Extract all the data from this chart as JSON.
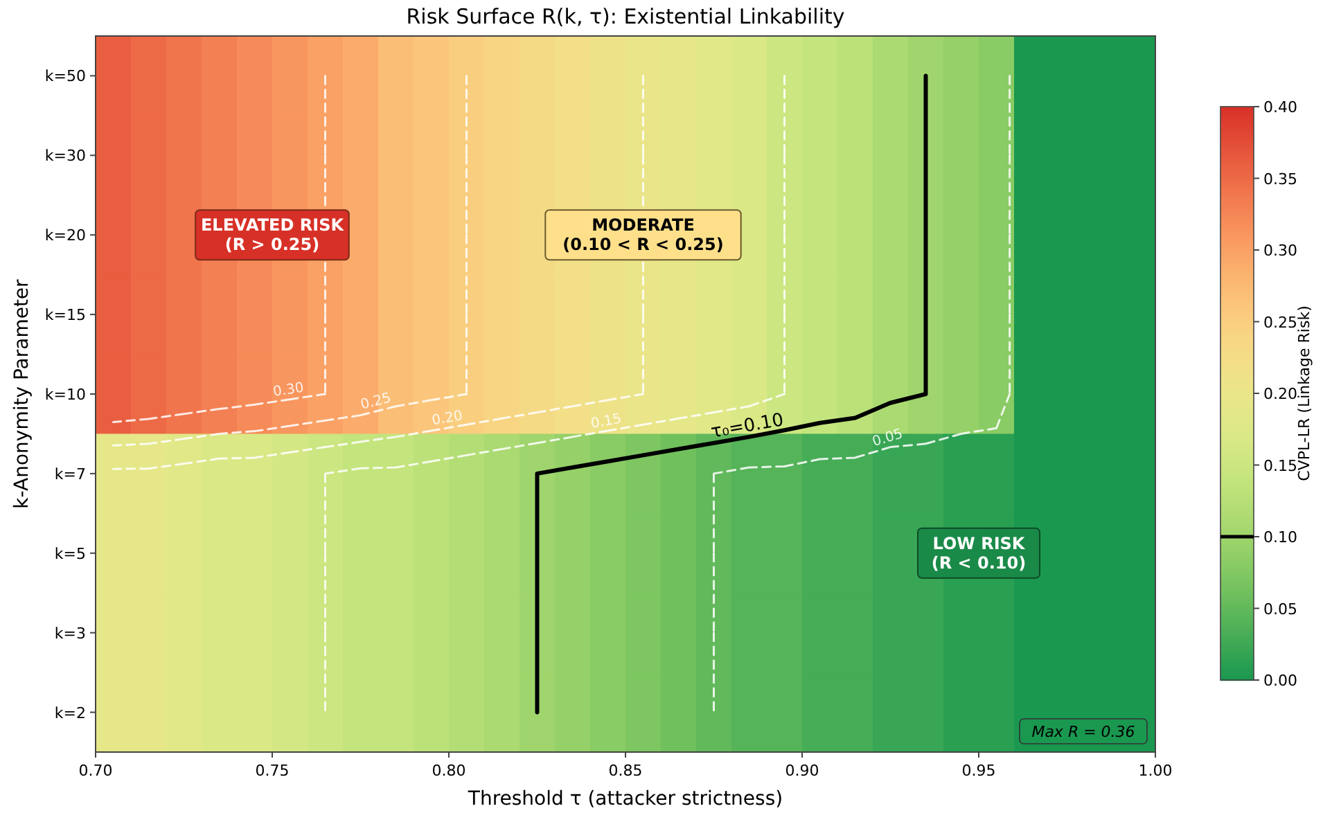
{
  "chart_data": {
    "type": "heatmap",
    "title": "Risk Surface R(k, τ): Existential Linkability",
    "xlabel": "Threshold τ (attacker strictness)",
    "ylabel": "k-Anonymity Parameter",
    "clabel": "CVPL-LR (Linkage Risk)",
    "x": [
      0.705,
      0.715,
      0.725,
      0.735,
      0.745,
      0.755,
      0.765,
      0.775,
      0.785,
      0.795,
      0.805,
      0.815,
      0.825,
      0.835,
      0.845,
      0.855,
      0.865,
      0.875,
      0.885,
      0.895,
      0.905,
      0.915,
      0.925,
      0.935,
      0.945,
      0.955,
      0.965,
      0.975,
      0.985,
      0.995
    ],
    "xlim": [
      0.7,
      1.0
    ],
    "xticks": [
      {
        "value": 0.7,
        "label": "0.70"
      },
      {
        "value": 0.75,
        "label": "0.75"
      },
      {
        "value": 0.8,
        "label": "0.80"
      },
      {
        "value": 0.85,
        "label": "0.85"
      },
      {
        "value": 0.9,
        "label": "0.90"
      },
      {
        "value": 0.95,
        "label": "0.95"
      },
      {
        "value": 1.0,
        "label": "1.00"
      }
    ],
    "y_categories": [
      "k=50",
      "k=30",
      "k=20",
      "k=15",
      "k=10",
      "k=7",
      "k=5",
      "k=3",
      "k=2"
    ],
    "cells": [
      [
        0.36,
        0.35,
        0.34,
        0.33,
        0.32,
        0.31,
        0.3,
        0.29,
        0.27,
        0.26,
        0.25,
        0.24,
        0.23,
        0.22,
        0.21,
        0.2,
        0.19,
        0.18,
        0.17,
        0.15,
        0.14,
        0.13,
        0.11,
        0.1,
        0.09,
        0.08,
        0,
        0,
        0,
        0
      ],
      [
        0.36,
        0.35,
        0.34,
        0.33,
        0.32,
        0.31,
        0.3,
        0.29,
        0.27,
        0.26,
        0.25,
        0.24,
        0.23,
        0.22,
        0.21,
        0.2,
        0.19,
        0.18,
        0.17,
        0.15,
        0.14,
        0.13,
        0.11,
        0.1,
        0.09,
        0.08,
        0,
        0,
        0,
        0
      ],
      [
        0.36,
        0.35,
        0.34,
        0.33,
        0.32,
        0.31,
        0.3,
        0.29,
        0.27,
        0.26,
        0.25,
        0.24,
        0.23,
        0.22,
        0.21,
        0.2,
        0.19,
        0.18,
        0.17,
        0.15,
        0.14,
        0.13,
        0.11,
        0.1,
        0.09,
        0.08,
        0,
        0,
        0,
        0
      ],
      [
        0.36,
        0.35,
        0.34,
        0.33,
        0.32,
        0.31,
        0.3,
        0.29,
        0.27,
        0.26,
        0.25,
        0.24,
        0.23,
        0.22,
        0.21,
        0.2,
        0.19,
        0.18,
        0.17,
        0.15,
        0.14,
        0.13,
        0.11,
        0.1,
        0.09,
        0.08,
        0,
        0,
        0,
        0
      ],
      [
        0.36,
        0.35,
        0.34,
        0.33,
        0.32,
        0.31,
        0.3,
        0.29,
        0.27,
        0.26,
        0.25,
        0.24,
        0.23,
        0.22,
        0.21,
        0.2,
        0.19,
        0.18,
        0.17,
        0.15,
        0.14,
        0.13,
        0.11,
        0.1,
        0.09,
        0.08,
        0,
        0,
        0,
        0
      ],
      [
        0.19,
        0.19,
        0.18,
        0.17,
        0.17,
        0.16,
        0.15,
        0.14,
        0.14,
        0.13,
        0.12,
        0.11,
        0.1,
        0.09,
        0.08,
        0.07,
        0.06,
        0.05,
        0.04,
        0.04,
        0.03,
        0.03,
        0.02,
        0.02,
        0.01,
        0.01,
        0,
        0,
        0,
        0
      ],
      [
        0.19,
        0.19,
        0.18,
        0.17,
        0.17,
        0.16,
        0.15,
        0.14,
        0.14,
        0.13,
        0.12,
        0.11,
        0.1,
        0.09,
        0.08,
        0.07,
        0.06,
        0.05,
        0.04,
        0.04,
        0.03,
        0.03,
        0.02,
        0.02,
        0.01,
        0.01,
        0,
        0,
        0,
        0
      ],
      [
        0.19,
        0.19,
        0.18,
        0.17,
        0.17,
        0.16,
        0.15,
        0.14,
        0.14,
        0.13,
        0.12,
        0.11,
        0.1,
        0.09,
        0.08,
        0.07,
        0.06,
        0.05,
        0.04,
        0.04,
        0.03,
        0.03,
        0.02,
        0.02,
        0.01,
        0.01,
        0,
        0,
        0,
        0
      ],
      [
        0.19,
        0.19,
        0.18,
        0.17,
        0.17,
        0.16,
        0.15,
        0.14,
        0.14,
        0.13,
        0.12,
        0.11,
        0.1,
        0.09,
        0.08,
        0.07,
        0.06,
        0.05,
        0.04,
        0.04,
        0.03,
        0.03,
        0.02,
        0.02,
        0.01,
        0.01,
        0,
        0,
        0,
        0
      ]
    ],
    "clim": [
      0,
      0.4
    ],
    "cticks": [
      {
        "value": 0,
        "label": "0.00"
      },
      {
        "value": 0.05,
        "label": "0.05"
      },
      {
        "value": 0.1,
        "label": "0.10"
      },
      {
        "value": 0.15,
        "label": "0.15"
      },
      {
        "value": 0.2,
        "label": "0.20"
      },
      {
        "value": 0.25,
        "label": "0.25"
      },
      {
        "value": 0.3,
        "label": "0.30"
      },
      {
        "value": 0.35,
        "label": "0.35"
      },
      {
        "value": 0.4,
        "label": "0.40"
      }
    ],
    "annotations": [
      "0.05",
      "τ₀=0.10",
      "0.15",
      "0.20",
      "0.25",
      "0.30",
      "ELEVATED RISK\n(R > 0.25)",
      "MODERATE\n(0.10 < R < 0.25)",
      "LOW RISK\n(R < 0.10)",
      "Max R = 0.36"
    ]
  }
}
